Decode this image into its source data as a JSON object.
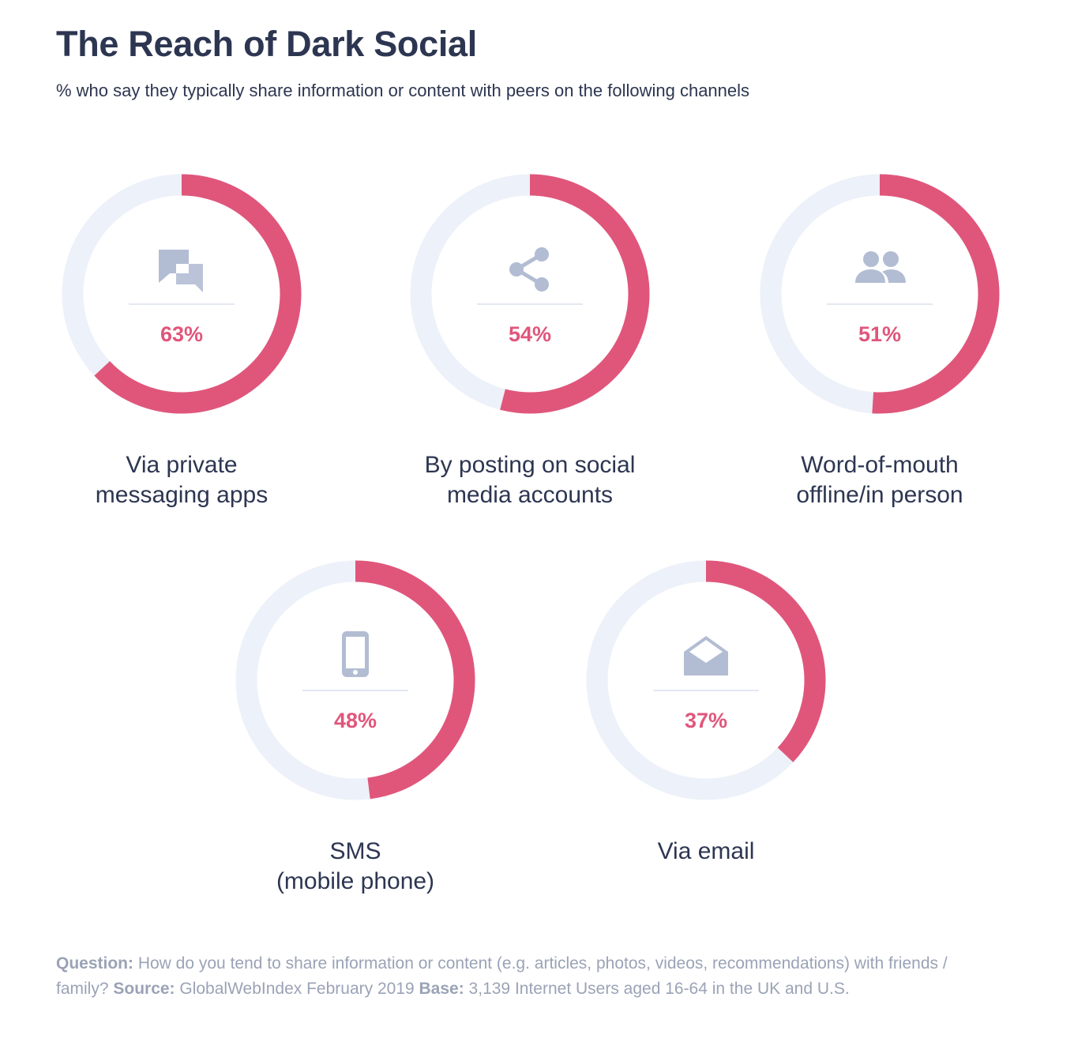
{
  "title": "The Reach of Dark Social",
  "subtitle": "% who say they typically share information or content with peers on the following channels",
  "colors": {
    "accent": "#e0567b",
    "track": "#edf1f9",
    "icon": "#b2bdd3",
    "text": "#2d3651",
    "muted": "#9aa3b6"
  },
  "chart_data": {
    "type": "pie",
    "variant": "donut-progress",
    "unit": "%",
    "categories": [
      "Via private messaging apps",
      "By posting on social media accounts",
      "Word-of-mouth offline/in person",
      "SMS (mobile phone)",
      "Via email"
    ],
    "values": [
      63,
      54,
      51,
      48,
      37
    ],
    "items": [
      {
        "value": 63,
        "pct_label": "63%",
        "label_lines": [
          "Via private",
          "messaging apps"
        ],
        "icon": "chat-bubbles-icon"
      },
      {
        "value": 54,
        "pct_label": "54%",
        "label_lines": [
          "By posting on social",
          "media accounts"
        ],
        "icon": "share-icon"
      },
      {
        "value": 51,
        "pct_label": "51%",
        "label_lines": [
          "Word-of-mouth",
          "offline/in person"
        ],
        "icon": "people-icon"
      },
      {
        "value": 48,
        "pct_label": "48%",
        "label_lines": [
          "SMS",
          "(mobile phone)"
        ],
        "icon": "mobile-phone-icon"
      },
      {
        "value": 37,
        "pct_label": "37%",
        "label_lines": [
          "Via email"
        ],
        "icon": "envelope-icon"
      }
    ]
  },
  "footnote": {
    "question_label": "Question:",
    "question_text": " How do you tend to share information or content (e.g. articles, photos, videos, recommendations) with friends / family? ",
    "source_label": "Source:",
    "source_text": " GlobalWebIndex February 2019 ",
    "base_label": "Base:",
    "base_text": " 3,139 Internet Users aged 16-64 in the UK and U.S."
  }
}
